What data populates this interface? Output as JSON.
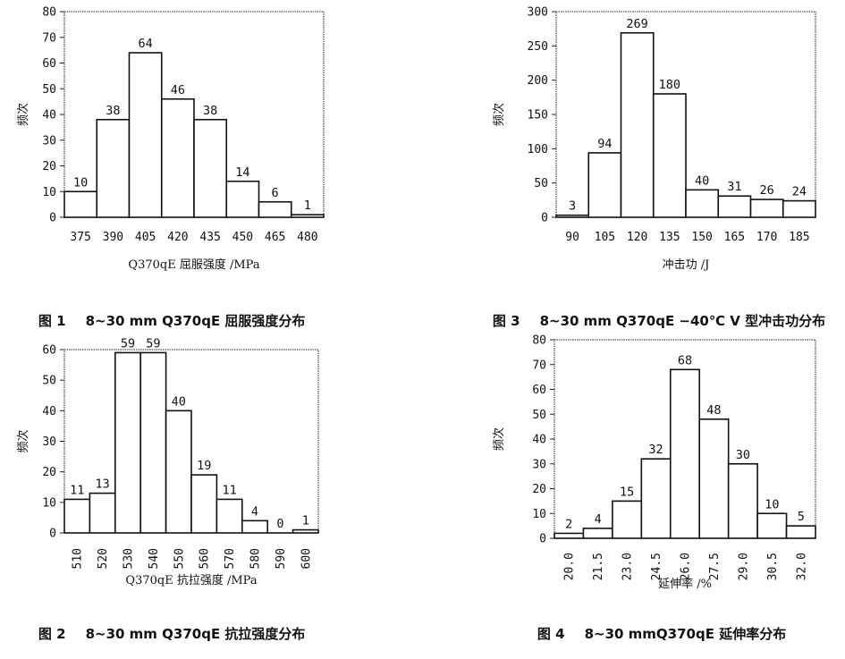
{
  "chart_data": [
    {
      "type": "bar",
      "categories": [
        "375",
        "390",
        "405",
        "420",
        "435",
        "450",
        "465",
        "480"
      ],
      "values": [
        10,
        38,
        64,
        46,
        38,
        14,
        6,
        1
      ],
      "xlabel": "Q370qE 屈服强度 /MPa",
      "ylabel": "频次",
      "ylim": [
        0,
        80
      ],
      "yticks": [
        0,
        10,
        20,
        30,
        40,
        50,
        60,
        70,
        80
      ],
      "caption_num": "图 1",
      "caption_text": "8~30 mm Q370qE 屈服强度分布",
      "xtick_rotation": 0
    },
    {
      "type": "bar",
      "categories": [
        "510",
        "520",
        "530",
        "540",
        "550",
        "560",
        "570",
        "580",
        "590",
        "600"
      ],
      "values": [
        11,
        13,
        59,
        59,
        40,
        19,
        11,
        4,
        0,
        1
      ],
      "xlabel": "Q370qE 抗拉强度 /MPa",
      "ylabel": "频次",
      "ylim": [
        0,
        60
      ],
      "yticks": [
        0,
        10,
        20,
        30,
        40,
        50,
        60
      ],
      "caption_num": "图 2",
      "caption_text": "8~30 mm Q370qE 抗拉强度分布",
      "xtick_rotation": -90
    },
    {
      "type": "bar",
      "categories": [
        "90",
        "105",
        "120",
        "135",
        "150",
        "165",
        "170",
        "185"
      ],
      "values": [
        3,
        94,
        269,
        180,
        40,
        31,
        26,
        24
      ],
      "xlabel": "冲击功 /J",
      "ylabel": "频次",
      "ylim": [
        0,
        300
      ],
      "yticks": [
        0,
        50,
        100,
        150,
        200,
        250,
        300
      ],
      "caption_num": "图 3",
      "caption_text": "8~30 mm Q370qE −40℃ V 型冲击功分布",
      "xtick_rotation": 0
    },
    {
      "type": "bar",
      "categories": [
        "20.0",
        "21.5",
        "23.0",
        "24.5",
        "26.0",
        "27.5",
        "29.0",
        "30.5",
        "32.0"
      ],
      "values": [
        2,
        4,
        15,
        32,
        68,
        48,
        30,
        10,
        5
      ],
      "xlabel": "延伸率 /%",
      "ylabel": "频次",
      "ylim": [
        0,
        80
      ],
      "yticks": [
        0,
        10,
        20,
        30,
        40,
        50,
        60,
        70,
        80
      ],
      "caption_num": "图 4",
      "caption_text": "8~30 mmQ370qE 延伸率分布",
      "xtick_rotation": -90
    }
  ]
}
